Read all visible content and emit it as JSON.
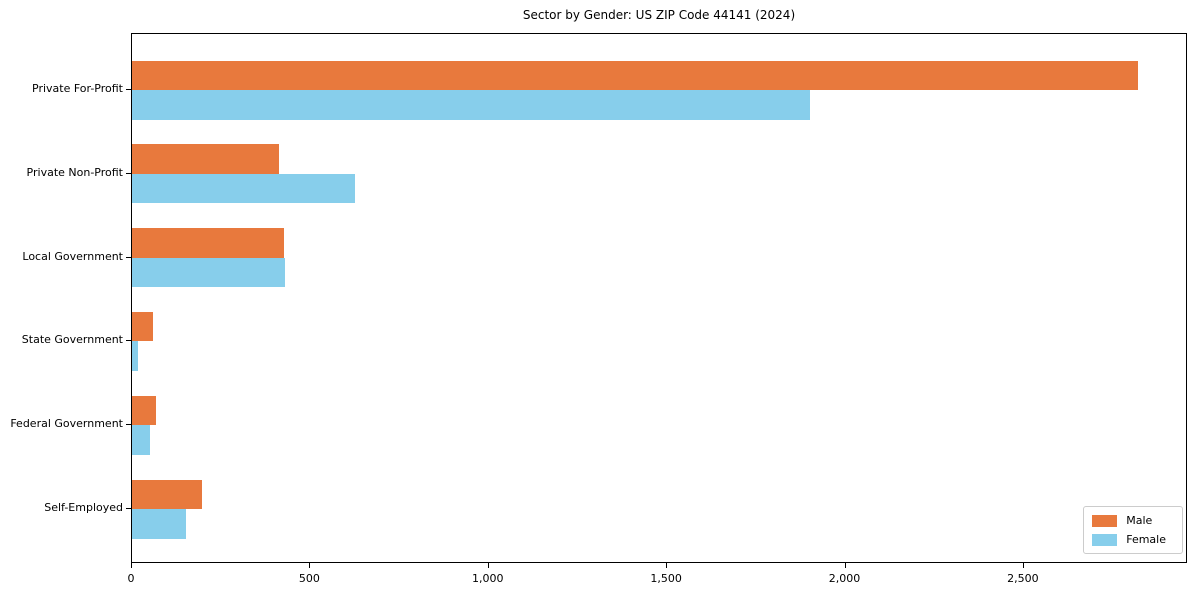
{
  "chart_data": {
    "type": "bar",
    "orientation": "horizontal",
    "title": "Sector by Gender: US ZIP Code 44141 (2024)",
    "categories": [
      "Private For-Profit",
      "Private Non-Profit",
      "Local Government",
      "State Government",
      "Federal Government",
      "Self-Employed"
    ],
    "series": [
      {
        "name": "Male",
        "color": "#e8793d",
        "values": [
          2820,
          412,
          425,
          60,
          67,
          197
        ]
      },
      {
        "name": "Female",
        "color": "#87ceeb",
        "values": [
          1900,
          625,
          428,
          18,
          51,
          151
        ]
      }
    ],
    "xlabel": "",
    "ylabel": "",
    "xlim": [
      0,
      2960
    ],
    "x_ticks": [
      0,
      500,
      1000,
      1500,
      2000,
      2500
    ],
    "x_tick_labels": [
      "0",
      "500",
      "1,000",
      "1,500",
      "2,000",
      "2,500"
    ],
    "grid": false,
    "legend_position": "lower-right"
  }
}
